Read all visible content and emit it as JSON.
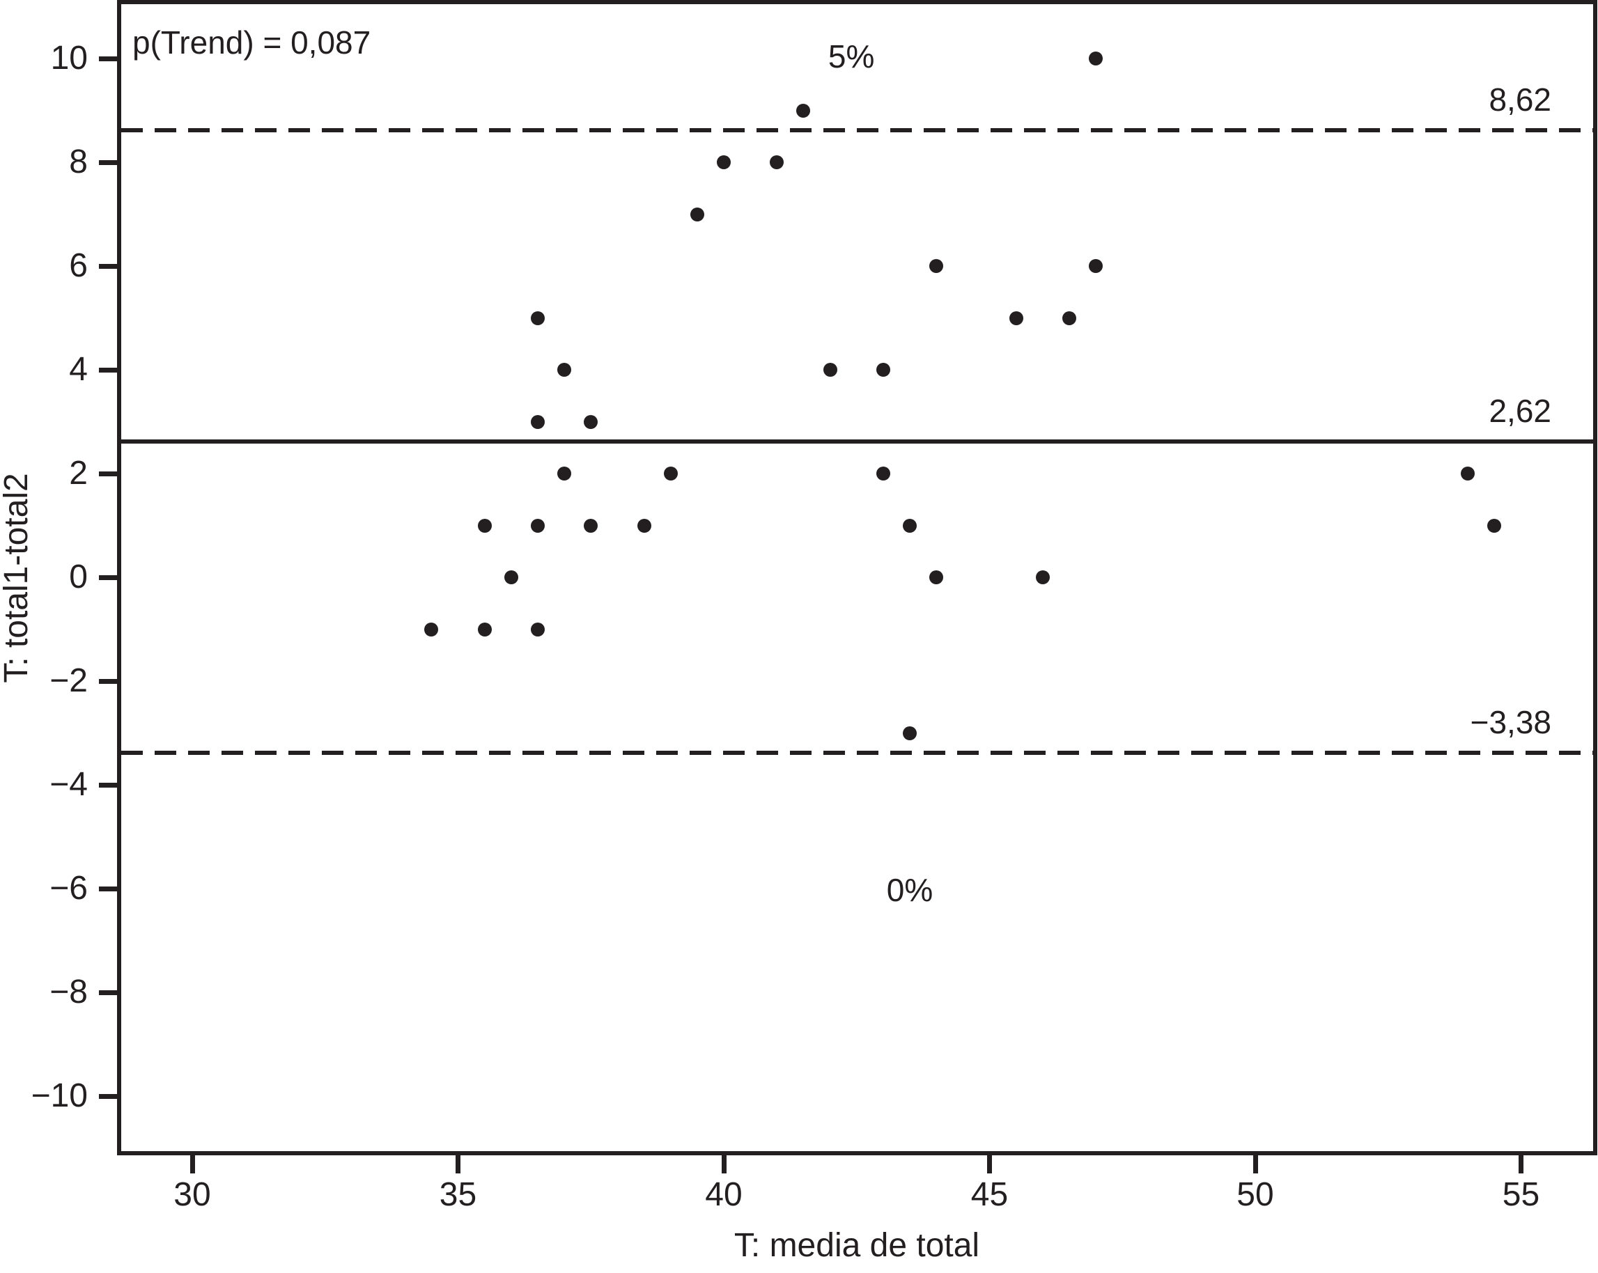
{
  "chart_data": {
    "type": "scatter",
    "title": "",
    "xlabel": "T: media de total",
    "ylabel": "T: total1-total2",
    "annotation_top_left": "p(Trend) = 0,087",
    "xlim": [
      28.6,
      56.4
    ],
    "ylim": [
      -11.1,
      11.0
    ],
    "grid": false,
    "legend_position": "none",
    "x_ticks": [
      {
        "value": 30,
        "label": "30"
      },
      {
        "value": 35,
        "label": "35"
      },
      {
        "value": 40,
        "label": "40"
      },
      {
        "value": 45,
        "label": "45"
      },
      {
        "value": 50,
        "label": "50"
      },
      {
        "value": 55,
        "label": "55"
      }
    ],
    "y_ticks": [
      {
        "value": 10,
        "label": "10"
      },
      {
        "value": 8,
        "label": "8"
      },
      {
        "value": 6,
        "label": "6"
      },
      {
        "value": 4,
        "label": "4"
      },
      {
        "value": 2,
        "label": "2"
      },
      {
        "value": 0,
        "label": "0"
      },
      {
        "value": -2,
        "label": "−2"
      },
      {
        "value": -4,
        "label": "−4"
      },
      {
        "value": -6,
        "label": "−6"
      },
      {
        "value": -8,
        "label": "−8"
      },
      {
        "value": -10,
        "label": "−10"
      }
    ],
    "points": [
      [
        47,
        10
      ],
      [
        41.5,
        9
      ],
      [
        40,
        8
      ],
      [
        41,
        8
      ],
      [
        39.5,
        7
      ],
      [
        44,
        6
      ],
      [
        47,
        6
      ],
      [
        36.5,
        5
      ],
      [
        45.5,
        5
      ],
      [
        46.5,
        5
      ],
      [
        37,
        4
      ],
      [
        42,
        4
      ],
      [
        43,
        4
      ],
      [
        36.5,
        3
      ],
      [
        37.5,
        3
      ],
      [
        37,
        2
      ],
      [
        39,
        2
      ],
      [
        43,
        2
      ],
      [
        54,
        2
      ],
      [
        35.5,
        1
      ],
      [
        36.5,
        1
      ],
      [
        37.5,
        1
      ],
      [
        38.5,
        1
      ],
      [
        43.5,
        1
      ],
      [
        54.5,
        1
      ],
      [
        36,
        0
      ],
      [
        44,
        0
      ],
      [
        46,
        0
      ],
      [
        34.5,
        -1
      ],
      [
        35.5,
        -1
      ],
      [
        36.5,
        -1
      ],
      [
        43.5,
        -3
      ]
    ],
    "reference_lines": [
      {
        "value": 8.62,
        "label": "8,62",
        "style": "dashed"
      },
      {
        "value": 2.62,
        "label": "2,62",
        "style": "solid"
      },
      {
        "value": -3.38,
        "label": "−3,38",
        "style": "dashed"
      }
    ],
    "annotations": [
      {
        "text": "5%",
        "x": 42.4,
        "y": 10.04
      },
      {
        "text": "0%",
        "x": 43.5,
        "y": -6.03
      }
    ],
    "colors": {
      "points": "#231f20",
      "lines": "#231f20",
      "text": "#231f20",
      "background": "#ffffff"
    }
  }
}
